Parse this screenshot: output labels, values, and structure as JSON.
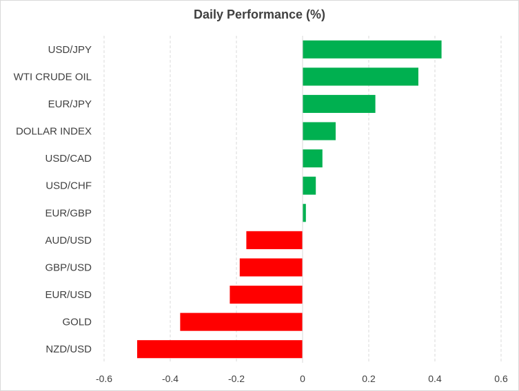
{
  "chart_data": {
    "type": "bar",
    "orientation": "horizontal",
    "title": "Daily Performance (%)",
    "xlabel": "",
    "ylabel": "",
    "categories": [
      "USD/JPY",
      "WTI CRUDE OIL",
      "EUR/JPY",
      "DOLLAR INDEX",
      "USD/CAD",
      "USD/CHF",
      "EUR/GBP",
      "AUD/USD",
      "GBP/USD",
      "EUR/USD",
      "GOLD",
      "NZD/USD"
    ],
    "values": [
      0.42,
      0.35,
      0.22,
      0.1,
      0.06,
      0.04,
      0.01,
      -0.17,
      -0.19,
      -0.22,
      -0.37,
      -0.5
    ],
    "xlim": [
      -0.6,
      0.6
    ],
    "xticks": [
      -0.6,
      -0.4,
      -0.2,
      0,
      0.2,
      0.4,
      0.6
    ],
    "xtick_labels": [
      "-0.6",
      "-0.4",
      "-0.2",
      "0",
      "0.2",
      "0.4",
      "0.6"
    ],
    "grid": "vertical-dashed",
    "legend": "none",
    "colors": {
      "positive": "#00b050",
      "negative": "#ff0000",
      "grid": "#d9d9d9",
      "text": "#404040"
    }
  }
}
